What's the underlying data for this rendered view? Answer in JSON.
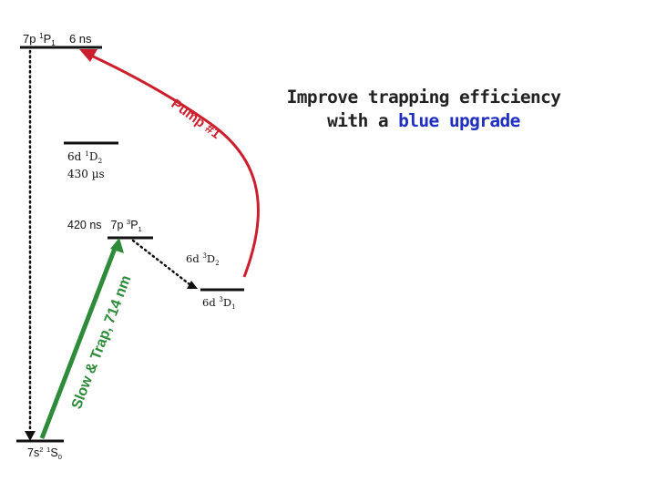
{
  "levels": {
    "p1_7": {
      "label": "7p ",
      "sup": "1",
      "main": "P",
      "sub": "1",
      "lifetime": "6 ns"
    },
    "d1_6": {
      "label": "6d ",
      "sup": "1",
      "main": "D",
      "sub": "2",
      "lifetime": "430 µs"
    },
    "p3_7": {
      "lifetime": "420 ns",
      "label": "7p ",
      "sup": "3",
      "main": "P",
      "sub": "1"
    },
    "d3_6_2": {
      "label": "6d ",
      "sup": "3",
      "main": "D",
      "sub": "2"
    },
    "d3_6_1": {
      "label": "6d ",
      "sup": "3",
      "main": "D",
      "sub": "1"
    },
    "ground": {
      "label": "7s",
      "sup1": "2",
      "space": " ",
      "sup2": "1",
      "main": "S",
      "sub": "0"
    }
  },
  "transitions": {
    "trap_label": "Slow & Trap, 714 nm",
    "pump_label": "Pump #1"
  },
  "title": {
    "line1": "Improve trapping efficiency",
    "line2_prefix": "with a ",
    "line2_highlight": "blue upgrade"
  },
  "colors": {
    "pump_arrow": "#cc1f2e",
    "trap_arrow": "#2e8b3a",
    "highlight": "#1f2fbf",
    "line": "#111111"
  }
}
